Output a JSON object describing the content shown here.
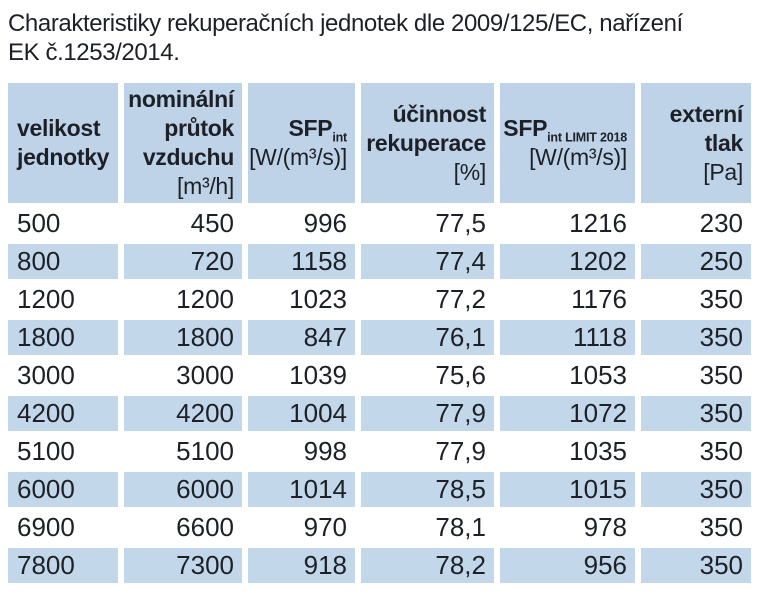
{
  "title": {
    "line1": "Charakteristiky rekuperačních jednotek dle 2009/125/EC, nařízení",
    "line2": "EK č.1253/2014."
  },
  "table": {
    "columns": [
      {
        "id": "velikost-jednotky",
        "line1": "velikost",
        "line2": "jednotky"
      },
      {
        "id": "nominalni-prutok-vzduchu",
        "line1": "nominální",
        "line2": "průtok",
        "line3": "vzduchu",
        "unit": "[m³/h]"
      },
      {
        "id": "sfp-int",
        "label": "SFP",
        "sub": "int",
        "unit": "[W/(m³/s)]"
      },
      {
        "id": "ucinnost-rekuperace",
        "line1": "účinnost",
        "line2": "rekuperace",
        "unit": "[%]"
      },
      {
        "id": "sfp-int-limit-2018",
        "label": "SFP",
        "sub": "int LIMIT 2018",
        "unit": "[W/(m³/s)]"
      },
      {
        "id": "externi-tlak",
        "line1": "externí",
        "line2": "tlak",
        "unit": "[Pa]"
      }
    ],
    "rows": [
      [
        "500",
        "450",
        "996",
        "77,5",
        "1216",
        "230"
      ],
      [
        "800",
        "720",
        "1158",
        "77,4",
        "1202",
        "250"
      ],
      [
        "1200",
        "1200",
        "1023",
        "77,2",
        "1176",
        "350"
      ],
      [
        "1800",
        "1800",
        "847",
        "76,1",
        "1118",
        "350"
      ],
      [
        "3000",
        "3000",
        "1039",
        "75,6",
        "1053",
        "350"
      ],
      [
        "4200",
        "4200",
        "1004",
        "77,9",
        "1072",
        "350"
      ],
      [
        "5100",
        "5100",
        "998",
        "77,9",
        "1035",
        "350"
      ],
      [
        "6000",
        "6000",
        "1014",
        "78,5",
        "1015",
        "350"
      ],
      [
        "6900",
        "6600",
        "970",
        "78,1",
        "978",
        "350"
      ],
      [
        "7800",
        "7300",
        "918",
        "78,2",
        "956",
        "350"
      ]
    ]
  },
  "colors": {
    "header_bg": "#bed3e7",
    "row_alt_bg": "#c3d7ea",
    "text": "#1d2027",
    "page_bg": "#ffffff"
  }
}
